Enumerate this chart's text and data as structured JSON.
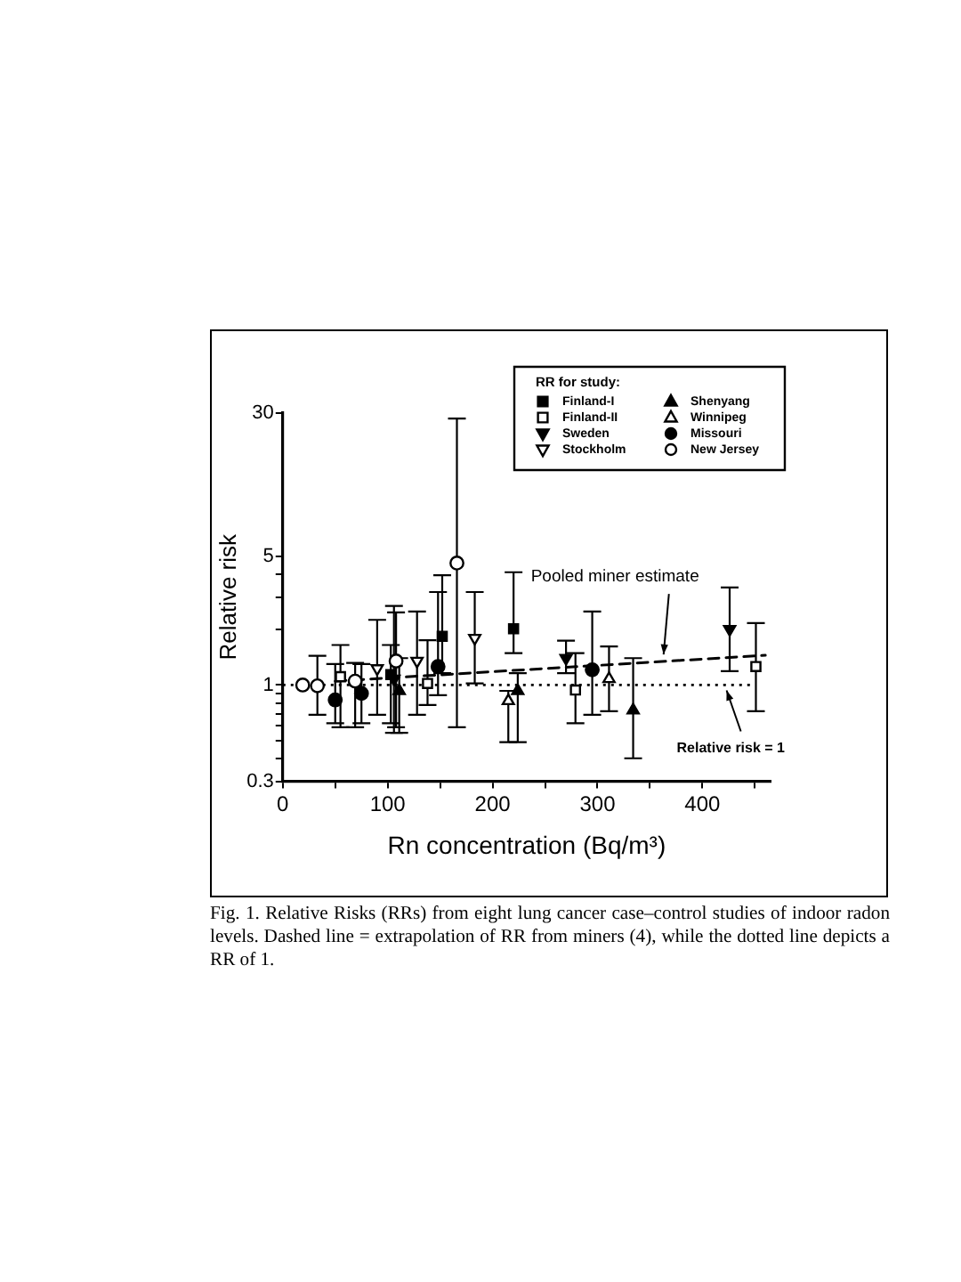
{
  "chart_data": {
    "type": "scatter",
    "xlabel": "Rn concentration (Bq/m³)",
    "ylabel": "Relative risk",
    "legend_title": "RR for study:",
    "log": "y",
    "legend": "top right",
    "xlim": [
      0,
      465
    ],
    "xticks": [
      0,
      {
        "value": 50,
        "label": null
      },
      100,
      {
        "value": 150,
        "label": null
      },
      200,
      {
        "value": 250,
        "label": null
      },
      300,
      {
        "value": 350,
        "label": null
      },
      400,
      {
        "value": 450,
        "label": null
      }
    ],
    "ylim": [
      0.3,
      30
    ],
    "yticks": [
      0.3,
      {
        "value": 0.4,
        "label": null
      },
      {
        "value": 0.5,
        "label": null
      },
      {
        "value": 0.6,
        "label": null
      },
      {
        "value": 0.7,
        "label": null
      },
      {
        "value": 0.8,
        "label": null
      },
      {
        "value": 0.9,
        "label": null
      },
      1,
      {
        "value": 2,
        "label": null
      },
      {
        "value": 3,
        "label": null
      },
      {
        "value": 4,
        "label": null
      },
      5,
      30
    ],
    "ref_lines": [
      {
        "axis": "y",
        "value": 1,
        "label": "Relative risk = 1",
        "line_style": "dotted"
      }
    ],
    "annotations": [
      {
        "text": "Pooled miner estimate",
        "x": 363,
        "y": 1.37
      },
      "Fig. 1. Relative Risks (RRs) from eight lung cancer case–control studies of indoor radon levels. Dashed line = extrapolation of RR from miners (4), while the dotted line depicts a RR of 1."
    ],
    "series": [
      {
        "name": "Finland-I",
        "color": "#000000",
        "marker": "square",
        "x": [
          103,
          152,
          220
        ],
        "values": [
          1.14,
          1.84,
          2.02
        ],
        "errors": [
          [
            0.62,
            1.65
          ],
          [
            1.16,
            3.95
          ],
          [
            1.49,
            4.1
          ]
        ]
      },
      {
        "name": "Finland-II",
        "color": "#000000",
        "marker": "square-open",
        "x": [
          55,
          138,
          279,
          451
        ],
        "values": [
          1.11,
          1.02,
          0.94,
          1.26
        ],
        "errors": [
          [
            0.59,
            1.65
          ],
          [
            0.78,
            1.75
          ],
          [
            0.62,
            1.49
          ],
          [
            0.72,
            2.17
          ]
        ]
      },
      {
        "name": "Sweden",
        "color": "#000000",
        "marker": "triangle-down",
        "x": [
          106,
          270,
          426
        ],
        "values": [
          1.08,
          1.4,
          2.01
        ],
        "errors": [
          [
            0.55,
            2.69
          ],
          [
            1.16,
            1.74
          ],
          [
            1.19,
            3.39
          ]
        ]
      },
      {
        "name": "Stockholm",
        "color": "#000000",
        "marker": "triangle-down-open",
        "x": [
          90,
          128,
          183
        ],
        "values": [
          1.23,
          1.35,
          1.8
        ],
        "errors": [
          [
            0.69,
            2.26
          ],
          [
            0.69,
            2.51
          ],
          [
            1.02,
            3.2
          ]
        ]
      },
      {
        "name": "Shenyang",
        "color": "#000000",
        "marker": "triangle",
        "x": [
          111,
          224,
          334
        ],
        "values": [
          0.93,
          0.93,
          0.73
        ],
        "errors": [
          [
            0.55,
            1.4
          ],
          [
            0.49,
            1.16
          ],
          [
            0.4,
            1.4
          ]
        ]
      },
      {
        "name": "Winnipeg",
        "color": "#000000",
        "marker": "triangle-open",
        "x": [
          215,
          311
        ],
        "values": [
          0.82,
          1.08
        ],
        "errors": [
          [
            0.49,
            0.93
          ],
          [
            0.72,
            1.62
          ]
        ]
      },
      {
        "name": "Missouri",
        "color": "#000000",
        "marker": "circle",
        "x": [
          50,
          75,
          148,
          295
        ],
        "values": [
          0.83,
          0.9,
          1.26,
          1.21
        ],
        "errors": [
          [
            0.62,
            1.3
          ],
          [
            0.62,
            1.3
          ],
          [
            0.88,
            3.2
          ],
          [
            0.69,
            2.51
          ]
        ]
      },
      {
        "name": "New Jersey",
        "color": "#000000",
        "marker": "circle-open",
        "x": [
          19,
          33,
          69,
          108,
          166
        ],
        "values": [
          1.0,
          0.99,
          1.05,
          1.35,
          4.6
        ],
        "errors": [
          null,
          [
            0.69,
            1.44
          ],
          [
            0.59,
            1.32
          ],
          [
            0.59,
            2.48
          ],
          [
            0.59,
            28
          ]
        ]
      },
      {
        "type": "line",
        "color": "#000000",
        "marker": "none",
        "line_style": "dashed",
        "x": [
          50,
          460
        ],
        "values": [
          1.05,
          1.45
        ]
      }
    ]
  }
}
